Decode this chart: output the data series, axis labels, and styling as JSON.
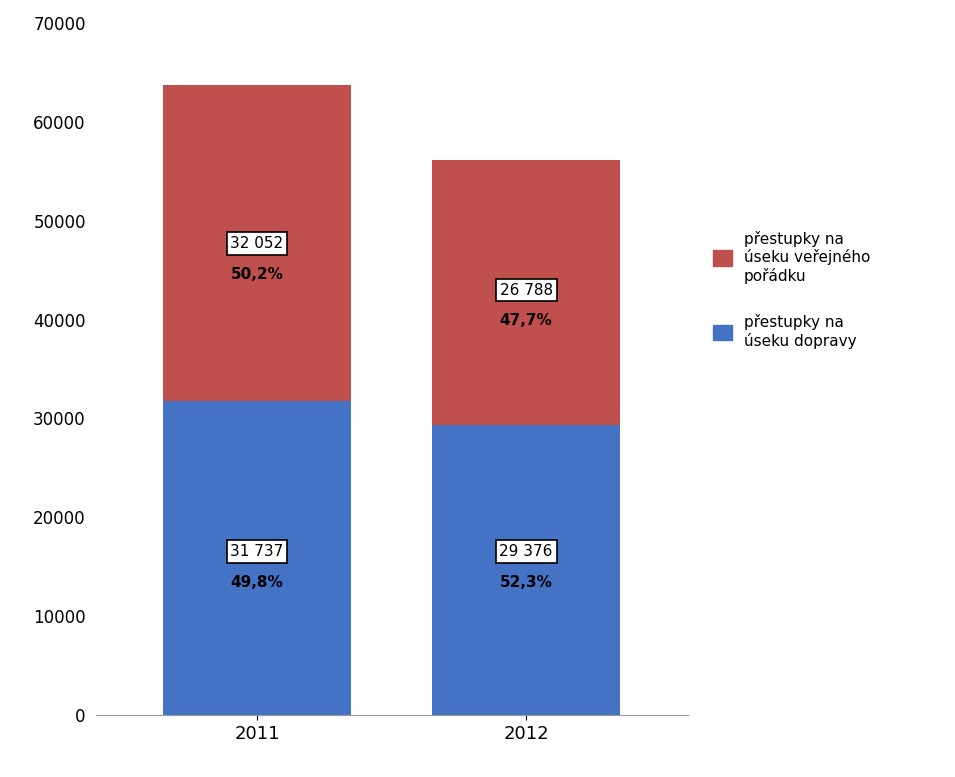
{
  "categories": [
    "2011",
    "2012"
  ],
  "blue_values": [
    31737,
    29376
  ],
  "red_values": [
    32052,
    26788
  ],
  "blue_label_nums": [
    "31 737",
    "29 376"
  ],
  "blue_label_pcts": [
    "49,8%",
    "52,3%"
  ],
  "red_label_nums": [
    "32 052",
    "26 788"
  ],
  "red_label_pcts": [
    "50,2%",
    "47,7%"
  ],
  "blue_color": "#4472C4",
  "red_color": "#C0504D",
  "ylim": [
    0,
    70000
  ],
  "yticks": [
    0,
    10000,
    20000,
    30000,
    40000,
    50000,
    60000,
    70000
  ],
  "ytick_labels": [
    "0",
    "10000",
    "20000",
    "30000",
    "40000",
    "50000",
    "60000",
    "70000"
  ],
  "legend_label_red": "přestupky na\núseku veřejného\npořádku",
  "legend_label_blue": "přestupky na\núseku dopravy",
  "bar_width": 0.35,
  "bar_positions": [
    0.25,
    0.75
  ]
}
